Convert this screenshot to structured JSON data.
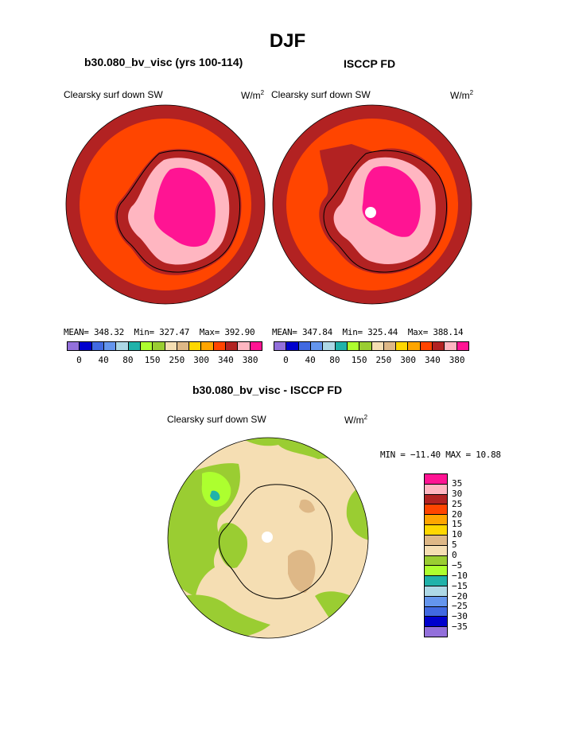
{
  "header": {
    "season": "DJF"
  },
  "panels": {
    "left": {
      "title": "b30.080_bv_visc (yrs 100-114)",
      "variable": "Clearsky surf down SW",
      "unit_base": "W/m",
      "unit_exp": "2",
      "mean_label": "MEAN=",
      "mean": "348.32",
      "min_label": "Min=",
      "min": "327.47",
      "max_label": "Max=",
      "max": "392.90"
    },
    "right": {
      "title": "ISCCP FD",
      "variable": "Clearsky surf down SW",
      "unit_base": "W/m",
      "unit_exp": "2",
      "mean_label": "MEAN=",
      "mean": "347.84",
      "min_label": "Min=",
      "min": "325.44",
      "max_label": "Max=",
      "max": "388.14"
    },
    "diff": {
      "title": "b30.080_bv_visc - ISCCP FD",
      "variable": "Clearsky surf down SW",
      "unit_base": "W/m",
      "unit_exp": "2",
      "minmax_text": "MIN = −11.40 MAX =  10.88"
    }
  },
  "colorbar_top": {
    "colors": [
      "#9370db",
      "#0000cd",
      "#4169e1",
      "#6495ed",
      "#add8e6",
      "#20b2aa",
      "#adff2f",
      "#9acd32",
      "#f5deb3",
      "#deb887",
      "#ffd700",
      "#ffa500",
      "#ff4500",
      "#b22222",
      "#ffb6c1",
      "#ff1493"
    ],
    "ticks": [
      "0",
      "40",
      "80",
      "150",
      "250",
      "300",
      "340",
      "380"
    ]
  },
  "colorbar_diff": {
    "colors": [
      "#ff1493",
      "#ffb6c1",
      "#b22222",
      "#ff4500",
      "#ffa500",
      "#ffd700",
      "#deb887",
      "#f5deb3",
      "#9acd32",
      "#adff2f",
      "#20b2aa",
      "#add8e6",
      "#6495ed",
      "#4169e1",
      "#0000cd",
      "#9370db"
    ],
    "ticks": [
      "35",
      "30",
      "25",
      "20",
      "15",
      "10",
      "5",
      "0",
      "−5",
      "−10",
      "−15",
      "−20",
      "−25",
      "−30",
      "−35"
    ]
  },
  "map_colors": {
    "ocean_far": "#b22222",
    "ocean": "#ff4500",
    "coast": "#b22222",
    "ice": "#ffb6c1",
    "plateau": "#ff1493",
    "diff_base": "#f5deb3",
    "diff_neg": "#9acd32",
    "diff_neg2": "#adff2f",
    "diff_pos": "#deb887",
    "diff_low": "#20b2aa"
  }
}
